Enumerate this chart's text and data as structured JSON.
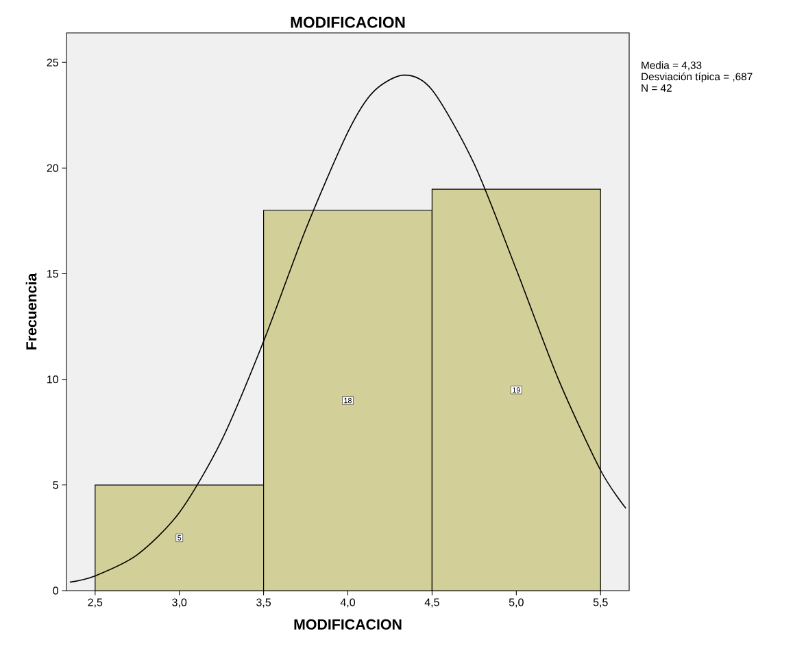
{
  "chart_data": {
    "type": "histogram",
    "title": "MODIFICACION",
    "xlabel": "MODIFICACION",
    "ylabel": "Frecuencia",
    "bins": [
      2.5,
      3.5,
      4.5,
      5.5
    ],
    "values": [
      5,
      18,
      19
    ],
    "color": "#d3cf98",
    "value_labels": [
      "5",
      "18",
      "19"
    ],
    "series": [
      {
        "type": "line",
        "color": "#000000",
        "x": [
          2.35,
          2.5,
          2.75,
          3.0,
          3.25,
          3.5,
          3.75,
          4.0,
          4.15,
          4.33,
          4.5,
          4.75,
          5.0,
          5.25,
          5.5,
          5.65
        ],
        "values": [
          0.4,
          0.7,
          1.7,
          3.7,
          7.1,
          11.8,
          17.1,
          21.7,
          23.6,
          24.4,
          23.7,
          20.2,
          15.2,
          10.0,
          5.7,
          3.9
        ]
      }
    ],
    "xlim": [
      2.33,
      5.67
    ],
    "ylim": [
      0,
      26.4
    ],
    "xticks": [
      {
        "value": 2.5,
        "label": "2,5"
      },
      {
        "value": 3.0,
        "label": "3,0"
      },
      {
        "value": 3.5,
        "label": "3,5"
      },
      {
        "value": 4.0,
        "label": "4,0"
      },
      {
        "value": 4.5,
        "label": "4,5"
      },
      {
        "value": 5.0,
        "label": "5,0"
      },
      {
        "value": 5.5,
        "label": "5,5"
      }
    ],
    "yticks": [
      0,
      5,
      10,
      15,
      20,
      25
    ],
    "annotations": [
      "Media = 4,33",
      "Desviación típica = ,687",
      "N = 42"
    ]
  }
}
